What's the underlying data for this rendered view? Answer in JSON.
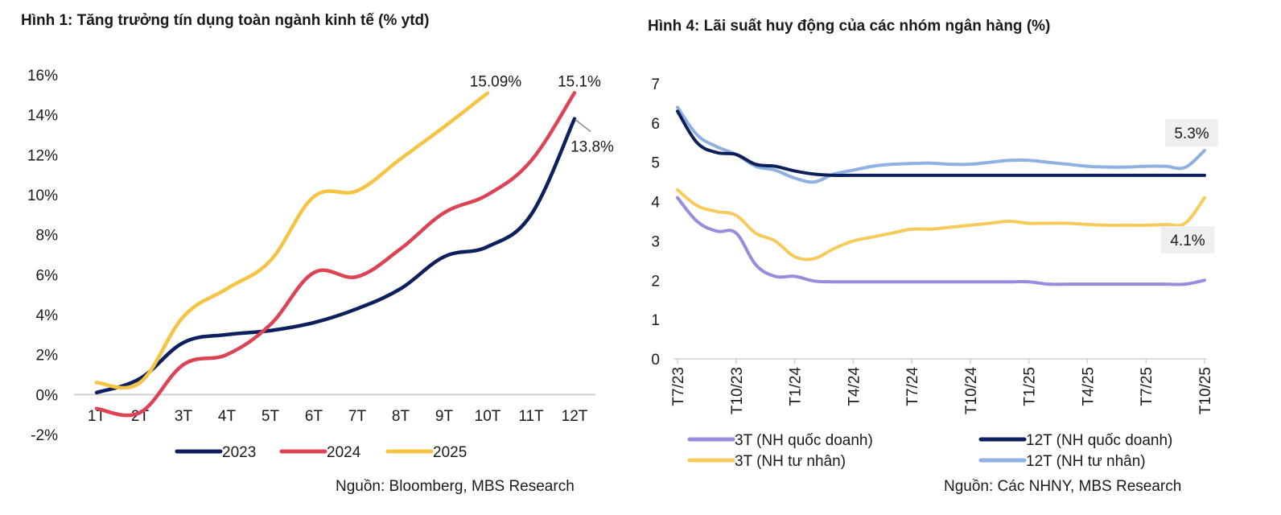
{
  "chart_data": [
    {
      "type": "line",
      "title": "Hình 1: Tăng trưởng tín dụng toàn ngành kinh tế (% ytd)",
      "xlabel": "",
      "ylabel": "",
      "categories": [
        "1T",
        "2T",
        "3T",
        "4T",
        "5T",
        "6T",
        "7T",
        "8T",
        "9T",
        "10T",
        "11T",
        "12T"
      ],
      "yticks": [
        "-2%",
        "0%",
        "2%",
        "4%",
        "6%",
        "8%",
        "10%",
        "12%",
        "14%",
        "16%"
      ],
      "ylim": [
        -2,
        16
      ],
      "grid": false,
      "legend_position": "bottom",
      "series": [
        {
          "name": "2023",
          "color": "#0d1f5c",
          "values": [
            0.1,
            0.8,
            2.6,
            3.0,
            3.2,
            3.6,
            4.3,
            5.3,
            6.9,
            7.4,
            9.0,
            13.8
          ]
        },
        {
          "name": "2024",
          "color": "#dc4455",
          "values": [
            -0.7,
            -0.9,
            1.5,
            2.0,
            3.5,
            6.1,
            5.9,
            7.3,
            9.1,
            10.0,
            11.7,
            15.1
          ]
        },
        {
          "name": "2025",
          "color": "#f5c443",
          "values": [
            0.6,
            0.6,
            3.9,
            5.3,
            6.7,
            9.9,
            10.2,
            11.8,
            13.4,
            15.09
          ]
        }
      ],
      "annotations": [
        {
          "text": "15.09%",
          "series": "2025",
          "category": "10T"
        },
        {
          "text": "15.1%",
          "series": "2024",
          "category": "12T"
        },
        {
          "text": "13.8%",
          "series": "2023",
          "category": "12T"
        }
      ],
      "source": "Nguồn: Bloomberg, MBS Research"
    },
    {
      "type": "line",
      "title": "Hình 4: Lãi suất huy động của các nhóm ngân hàng (%)",
      "xlabel": "",
      "ylabel": "",
      "x": [
        "T7/23",
        "T8/23",
        "T9/23",
        "T10/23",
        "T11/23",
        "T12/23",
        "T1/24",
        "T2/24",
        "T3/24",
        "T4/24",
        "T5/24",
        "T6/24",
        "T7/24",
        "T8/24",
        "T9/24",
        "T10/24",
        "T11/24",
        "T12/24",
        "T1/25",
        "T2/25",
        "T3/25",
        "T4/25",
        "T5/25",
        "T6/25",
        "T7/25",
        "T8/25",
        "T9/25",
        "T10/25"
      ],
      "xticks": [
        "T7/23",
        "T10/23",
        "T1/24",
        "T4/24",
        "T7/24",
        "T10/24",
        "T1/25",
        "T4/25",
        "T7/25",
        "T10/25"
      ],
      "yticks": [
        "0",
        "1",
        "2",
        "3",
        "4",
        "5",
        "6",
        "7"
      ],
      "ylim": [
        0,
        7
      ],
      "grid": false,
      "legend_position": "bottom",
      "series": [
        {
          "name": "3T (NH quốc doanh)",
          "color": "#9b8bdc",
          "values": [
            4.1,
            3.5,
            3.25,
            3.2,
            2.4,
            2.1,
            2.1,
            1.98,
            1.96,
            1.96,
            1.96,
            1.96,
            1.96,
            1.96,
            1.96,
            1.96,
            1.96,
            1.96,
            1.96,
            1.9,
            1.9,
            1.9,
            1.9,
            1.9,
            1.9,
            1.9,
            1.9,
            2.0
          ]
        },
        {
          "name": "12T (NH quốc doanh)",
          "color": "#0b1f5a",
          "values": [
            6.3,
            5.5,
            5.25,
            5.2,
            4.95,
            4.9,
            4.78,
            4.7,
            4.67,
            4.67,
            4.67,
            4.67,
            4.67,
            4.67,
            4.67,
            4.67,
            4.67,
            4.67,
            4.67,
            4.67,
            4.67,
            4.67,
            4.67,
            4.67,
            4.67,
            4.67,
            4.67,
            4.67
          ]
        },
        {
          "name": "3T (NH tư nhân)",
          "color": "#f7cb5b",
          "values": [
            4.3,
            3.9,
            3.75,
            3.65,
            3.2,
            3.0,
            2.6,
            2.55,
            2.8,
            3.0,
            3.1,
            3.2,
            3.3,
            3.3,
            3.35,
            3.4,
            3.45,
            3.5,
            3.45,
            3.45,
            3.45,
            3.42,
            3.4,
            3.4,
            3.4,
            3.42,
            3.45,
            4.1
          ]
        },
        {
          "name": "12T (NH tư nhân)",
          "color": "#8fb0e0",
          "values": [
            6.4,
            5.7,
            5.4,
            5.2,
            4.9,
            4.8,
            4.6,
            4.5,
            4.7,
            4.8,
            4.9,
            4.95,
            4.97,
            4.98,
            4.95,
            4.95,
            5.0,
            5.05,
            5.05,
            5.0,
            4.95,
            4.9,
            4.88,
            4.88,
            4.9,
            4.9,
            4.87,
            5.3
          ]
        }
      ],
      "annotations": [
        {
          "text": "5.3%",
          "series": "12T (NH tư nhân)",
          "x": "T10/25"
        },
        {
          "text": "4.1%",
          "series": "3T (NH tư nhân)",
          "x": "T10/25"
        }
      ],
      "source": "Nguồn: Các NHNY, MBS Research"
    }
  ]
}
